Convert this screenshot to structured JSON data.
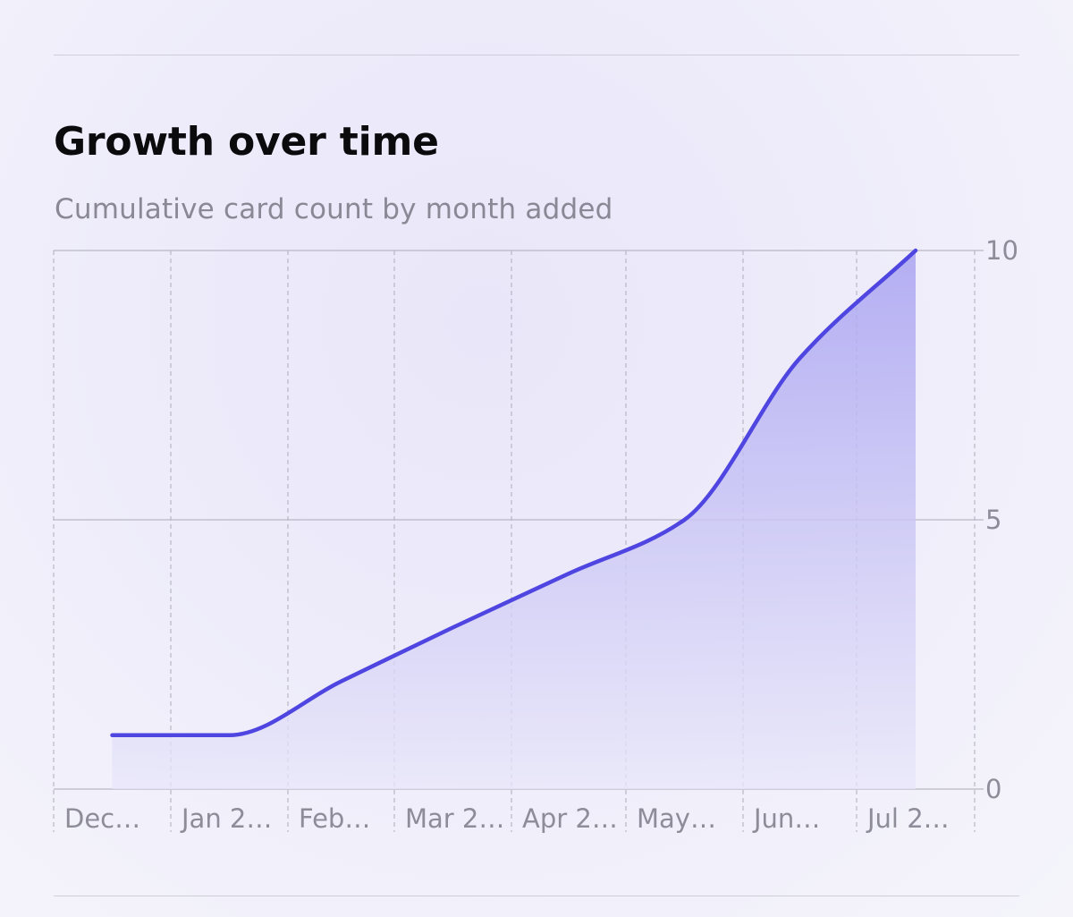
{
  "header": {
    "title": "Growth over time",
    "subtitle": "Cumulative card count by month added"
  },
  "colors": {
    "line": "#4f45e0",
    "area_top": "#a9a3f1",
    "area_bottom": "#e8e6f9",
    "grid": "#b9b7c4",
    "tick_text": "#8e8c98"
  },
  "chart_data": {
    "type": "area",
    "title": "Growth over time",
    "subtitle": "Cumulative card count by month added",
    "categories": [
      "Dec…",
      "Jan 2…",
      "Feb…",
      "Mar 2…",
      "Apr 2…",
      "May…",
      "Jun…",
      "Jul 2…"
    ],
    "x": [
      0.5,
      1.5,
      2.5,
      3.5,
      4.5,
      5.5,
      6.5,
      7.5
    ],
    "values": [
      1,
      1,
      2,
      3,
      4,
      5,
      8,
      10
    ],
    "y_axis": {
      "position": "right",
      "range": [
        0,
        10
      ],
      "ticks": [
        0,
        5,
        10
      ]
    },
    "grid": {
      "horizontal": "solid at y ticks",
      "vertical": "dashed at category boundaries"
    },
    "legend": "none",
    "xlabel": "",
    "ylabel": ""
  }
}
